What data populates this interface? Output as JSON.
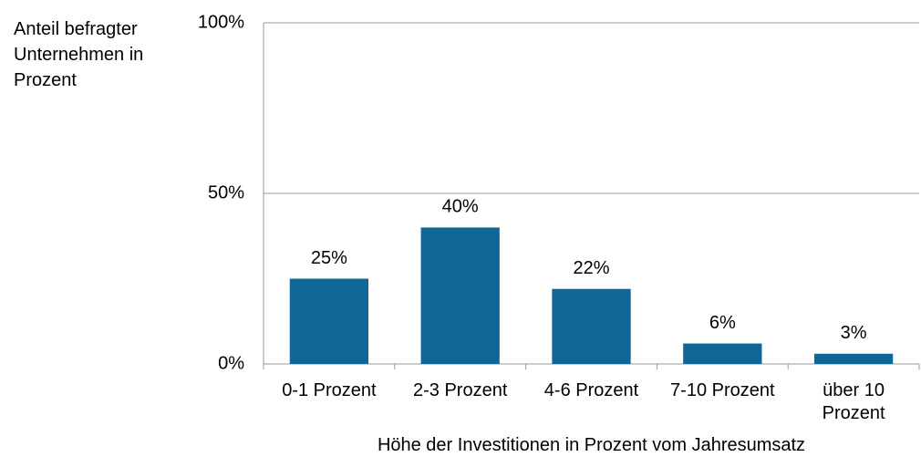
{
  "chart_data": {
    "type": "bar",
    "y_axis_label": "Anteil befragter Unternehmen in Prozent",
    "x_axis_label": "Höhe der Investitionen in Prozent vom Jahresumsatz",
    "categories": [
      "0-1 Prozent",
      "2-3 Prozent",
      "4-6 Prozent",
      "7-10 Prozent",
      "über 10 Prozent"
    ],
    "values": [
      25,
      40,
      22,
      6,
      3
    ],
    "value_labels": [
      "25%",
      "40%",
      "22%",
      "6%",
      "3%"
    ],
    "color": "#0f6795",
    "ylim": [
      0,
      100
    ],
    "yticks": [
      {
        "value": 0,
        "label": "0%"
      },
      {
        "value": 50,
        "label": "50%"
      },
      {
        "value": 100,
        "label": "100%"
      }
    ],
    "grid": true
  }
}
